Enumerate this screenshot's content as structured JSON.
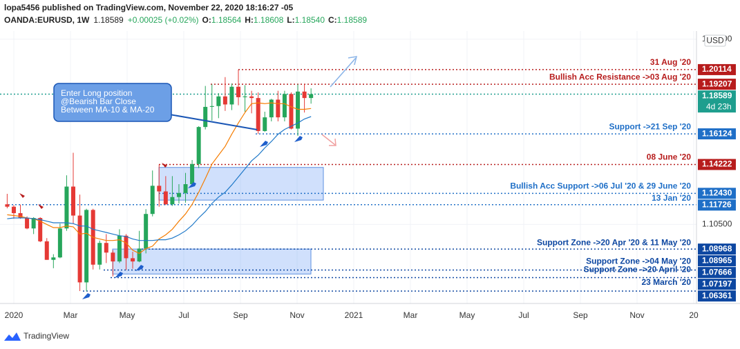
{
  "chart_data": {
    "type": "candlestick",
    "header": {
      "published": "lopa5456 published on TradingView.com, November 22, 2020 18:16:27 -05",
      "symbol": "OANDA:EURUSD, 1W",
      "last": "1.18589",
      "change": "+0.00025 (+0.02%)",
      "ohlc": [
        {
          "key": "O:",
          "value": "1.18564"
        },
        {
          "key": "H:",
          "value": "1.18608"
        },
        {
          "key": "L:",
          "value": "1.18540"
        },
        {
          "key": "C:",
          "value": "1.18589"
        }
      ]
    },
    "currency": "USD",
    "countdown": "4d 23h",
    "brand": "TradingView",
    "categories": [
      null,
      null,
      null,
      null,
      null,
      null,
      null,
      null,
      null,
      null,
      null,
      null,
      null,
      null,
      null,
      null,
      null,
      null,
      null,
      null,
      null,
      null,
      null,
      null,
      null,
      null,
      null,
      null,
      null,
      null,
      null,
      null,
      null,
      null,
      null,
      null,
      null,
      null,
      null,
      null,
      null,
      null,
      null,
      null,
      null,
      null,
      null
    ],
    "open": [
      1.1175,
      1.116,
      1.112,
      1.109,
      1.1025,
      1.109,
      1.0945,
      1.083,
      1.0845,
      1.1025,
      1.1285,
      1.1105,
      1.069,
      1.114,
      1.08,
      1.0935,
      1.0875,
      1.082,
      1.098,
      1.084,
      1.082,
      1.09,
      1.1115,
      1.129,
      1.1255,
      1.1175,
      1.122,
      1.1245,
      1.13,
      1.1425,
      1.1655,
      1.178,
      1.1785,
      1.1845,
      1.1795,
      1.1905,
      1.184,
      1.1845,
      1.1835,
      1.163,
      1.1715,
      1.1825,
      1.1715,
      1.186,
      1.1645,
      1.1875,
      1.1835
    ],
    "high": [
      1.124,
      1.117,
      1.1173,
      1.11,
      1.1095,
      1.1095,
      1.0965,
      1.0865,
      1.1055,
      1.1355,
      1.1495,
      1.1235,
      1.1147,
      1.1147,
      1.095,
      1.099,
      1.089,
      1.102,
      1.099,
      1.088,
      1.101,
      1.1145,
      1.1385,
      1.1422,
      1.135,
      1.135,
      1.13,
      1.137,
      1.145,
      1.166,
      1.191,
      1.192,
      1.1865,
      1.1965,
      1.1925,
      1.2011,
      1.1915,
      1.188,
      1.187,
      1.175,
      1.183,
      1.188,
      1.188,
      1.187,
      1.192,
      1.192,
      1.1895
    ],
    "low": [
      1.115,
      1.1085,
      1.1085,
      1.102,
      1.099,
      1.094,
      1.083,
      1.0778,
      1.084,
      1.101,
      1.1055,
      1.0636,
      1.0635,
      1.077,
      1.077,
      1.081,
      1.0727,
      1.081,
      1.0767,
      1.0775,
      1.0815,
      1.087,
      1.11,
      1.116,
      1.117,
      1.1165,
      1.118,
      1.1185,
      1.1285,
      1.14,
      1.164,
      1.1695,
      1.171,
      1.1755,
      1.176,
      1.179,
      1.175,
      1.174,
      1.1612,
      1.1625,
      1.169,
      1.169,
      1.169,
      1.164,
      1.16,
      1.1745,
      1.18
    ],
    "close": [
      1.116,
      1.112,
      1.109,
      1.1025,
      1.109,
      1.0945,
      1.083,
      1.0845,
      1.1025,
      1.1285,
      1.1105,
      1.069,
      1.114,
      1.08,
      1.0935,
      1.0875,
      1.082,
      1.098,
      1.084,
      1.082,
      1.09,
      1.1115,
      1.129,
      1.1255,
      1.1175,
      1.122,
      1.1245,
      1.13,
      1.1425,
      1.1655,
      1.178,
      1.1785,
      1.1845,
      1.1795,
      1.1905,
      1.184,
      1.1845,
      1.1835,
      1.163,
      1.1715,
      1.1825,
      1.1715,
      1.186,
      1.1645,
      1.1875,
      1.1835,
      1.1859
    ],
    "up_color": "#26a65b",
    "down_color": "#e53935",
    "series": [
      {
        "name": "MA-10",
        "color": "#f57c00",
        "values": [
          1.111,
          1.1105,
          1.11,
          1.109,
          1.1085,
          1.107,
          1.105,
          1.103,
          1.103,
          1.104,
          1.1035,
          1.099,
          1.0995,
          1.097,
          1.096,
          1.095,
          1.095,
          1.0955,
          1.0935,
          1.089,
          1.087,
          1.09,
          1.0915,
          1.096,
          1.0985,
          1.102,
          1.107,
          1.1115,
          1.1175,
          1.125,
          1.1335,
          1.1425,
          1.148,
          1.1535,
          1.161,
          1.168,
          1.1745,
          1.18,
          1.1805,
          1.18,
          1.1805,
          1.18,
          1.18,
          1.178,
          1.1765,
          1.1765,
          1.177
        ]
      },
      {
        "name": "MA-20",
        "color": "#1e78c8",
        "values": [
          1.1085,
          1.109,
          1.109,
          1.109,
          1.1085,
          1.108,
          1.107,
          1.106,
          1.106,
          1.106,
          1.1055,
          1.104,
          1.104,
          1.102,
          1.101,
          1.1,
          1.099,
          1.098,
          1.0975,
          1.096,
          1.095,
          1.095,
          1.095,
          1.0955,
          1.0955,
          1.0965,
          1.0985,
          1.101,
          1.1045,
          1.109,
          1.113,
          1.118,
          1.122,
          1.125,
          1.1295,
          1.1345,
          1.1395,
          1.1445,
          1.148,
          1.1525,
          1.1565,
          1.161,
          1.164,
          1.166,
          1.168,
          1.1705,
          1.172
        ]
      }
    ],
    "ylim": [
      1.0559,
      1.2251
    ],
    "yticks": [
      {
        "value": 1.22,
        "label": "1.22000"
      },
      {
        "value": 1.105,
        "label": "1.10500"
      }
    ],
    "time_labels": [
      "2020",
      "Mar",
      "May",
      "Jul",
      "Sep",
      "Nov",
      "2021",
      "Mar",
      "May",
      "Jul",
      "Sep",
      "Nov",
      "20"
    ],
    "levels": [
      {
        "value": 1.20114,
        "label": "1.20114",
        "text": "31 Aug '20",
        "color": "#b71c1c"
      },
      {
        "value": 1.19207,
        "label": "1.19207",
        "text": "Bullish Acc Resistance ->03 Aug '20",
        "color": "#b71c1c"
      },
      {
        "value": 1.18589,
        "label": "1.18589",
        "color": "#1e9e8e"
      },
      {
        "value": 1.16124,
        "label": "1.16124",
        "text": "Support ->21 Sep '20",
        "color": "#1f6fc7"
      },
      {
        "value": 1.14222,
        "label": "1.14222",
        "text": "08 June '20",
        "color": "#b71c1c"
      },
      {
        "value": 1.1243,
        "label": "1.12430",
        "text": "Bullish Acc Support ->06 Jul '20 & 29 June '20",
        "color": "#1f6fc7"
      },
      {
        "value": 1.11726,
        "label": "1.11726",
        "text": "13 Jan '20",
        "color": "#1f6fc7"
      },
      {
        "value": 1.08968,
        "label": "1.08968",
        "text": "Support Zone ->20 Apr '20  & 11 May '20",
        "color": "#0d47a1"
      },
      {
        "value": 1.08965,
        "label": "1.08965",
        "color": "#0d47a1"
      },
      {
        "value": 1.07666,
        "label": "1.07666",
        "text": "Support Zone ->04 May '20",
        "color": "#0d47a1"
      },
      {
        "value": 1.07197,
        "label": "1.07197",
        "text": "Support Zone ->20 April '20",
        "color": "#0d47a1"
      },
      {
        "value": 1.06361,
        "label": "1.06361",
        "text": "23 March '20",
        "color": "#0d47a1"
      }
    ],
    "zones": [
      {
        "top": 1.1404,
        "bottom": 1.1201
      },
      {
        "top": 1.0897,
        "bottom": 1.0742
      }
    ],
    "callout": [
      "Enter Long position",
      "@Bearish Bar Close",
      "Between MA-10 & MA-20"
    ]
  }
}
